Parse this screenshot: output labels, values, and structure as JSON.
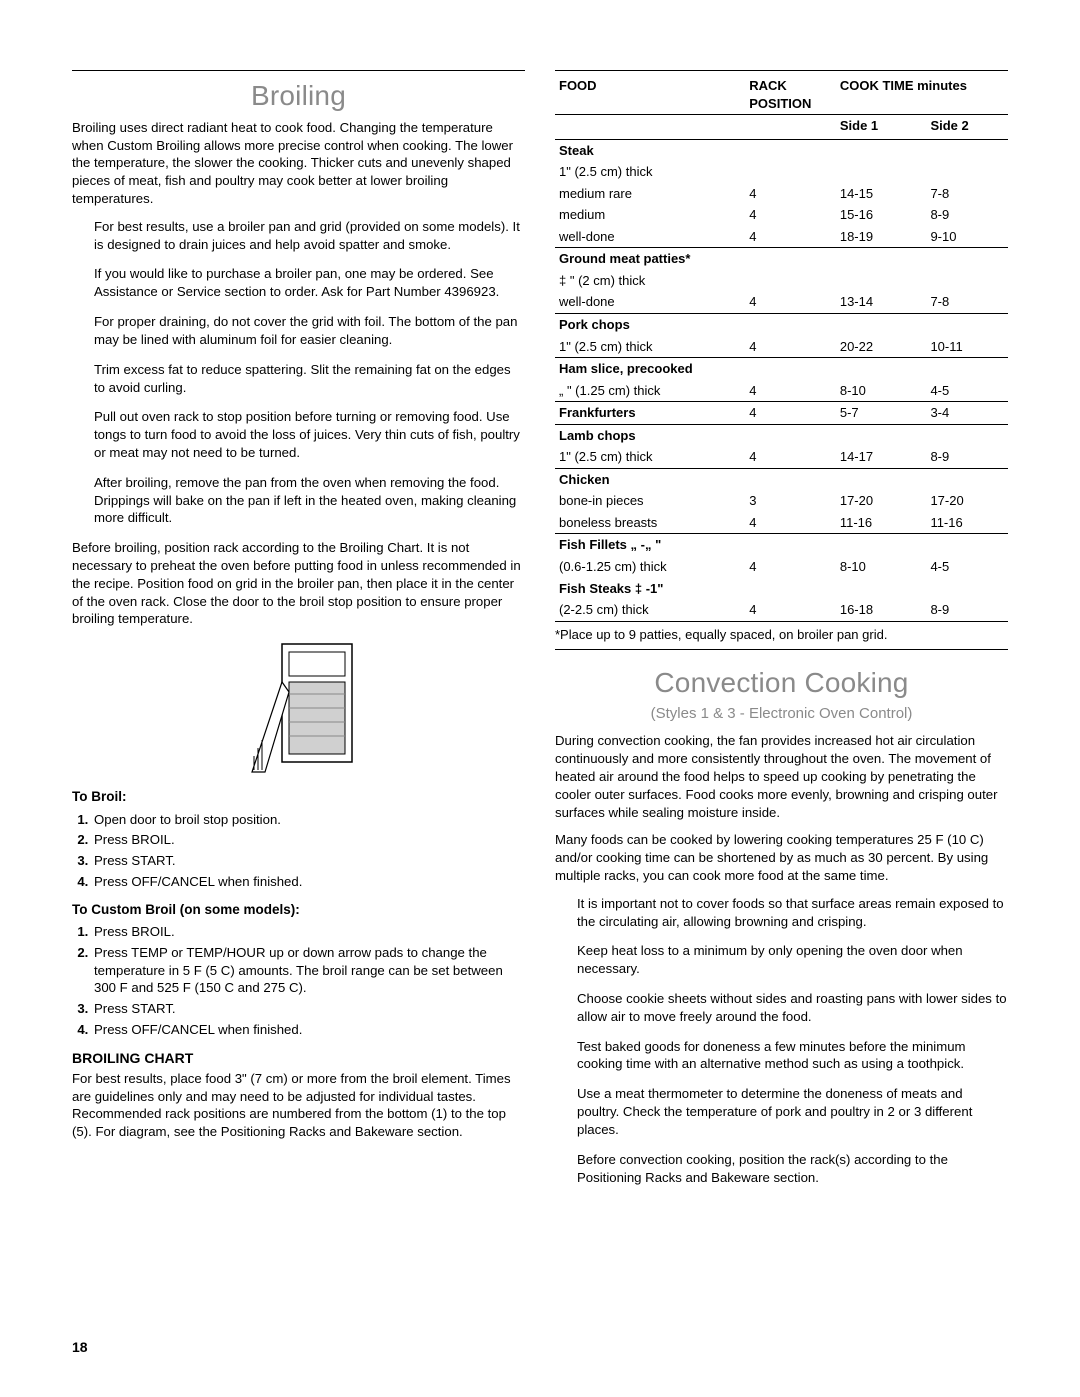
{
  "pageNumber": "18",
  "left": {
    "title": "Broiling",
    "intro": "Broiling uses direct radiant heat to cook food. Changing the temperature when Custom Broiling allows more precise control when cooking. The lower the temperature, the slower the cooking. Thicker cuts and unevenly shaped pieces of meat, fish and poultry may cook better at lower broiling temperatures.",
    "tips": [
      "For best results, use a broiler pan and grid (provided on some models). It is designed to drain juices and help avoid spatter and smoke.",
      "If you would like to purchase a broiler pan, one may be ordered. See Assistance or Service section to order. Ask for Part Number 4396923.",
      "For proper draining, do not cover the grid with foil. The bottom of the pan may be lined with aluminum foil for easier cleaning.",
      "Trim excess fat to reduce spattering. Slit the remaining fat on the edges to avoid curling.",
      "Pull out oven rack to stop position before turning or removing food. Use tongs to turn food to avoid the loss of juices. Very thin cuts of fish, poultry or meat may not need to be turned.",
      "After broiling, remove the pan from the oven when removing the food. Drippings will bake on the pan if left in the heated oven, making cleaning more difficult."
    ],
    "beforeBroiling": "Before broiling, position rack according to the Broiling Chart. It is not necessary to preheat the oven before putting food in unless recommended in the recipe. Position food on grid in the broiler pan, then place it in the center of the oven rack. Close the door to the broil stop position to ensure proper broiling temperature.",
    "toBroilHead": "To Broil:",
    "toBroilSteps": [
      "Open door to broil stop position.",
      "Press BROIL.",
      "Press START.",
      "Press OFF/CANCEL when finished."
    ],
    "customHead": "To Custom Broil (on some models):",
    "customSteps": [
      "Press BROIL.",
      "Press TEMP or TEMP/HOUR up or down arrow pads to change the temperature in 5 F (5 C) amounts. The broil range can be set between 300 F and 525 F (150 C and 275 C).",
      "Press START.",
      "Press OFF/CANCEL when finished."
    ],
    "chartHead": "BROILING CHART",
    "chartText": "For best results, place food 3\" (7 cm) or more from the broil element. Times are guidelines only and may need to be adjusted for individual tastes. Recommended rack positions are numbered from the bottom (1) to the top (5). For diagram, see the Positioning Racks and Bakeware section."
  },
  "table": {
    "headers": {
      "food": "FOOD",
      "rack": "RACK POSITION",
      "cook": "COOK TIME minutes",
      "side1": "Side 1",
      "side2": "Side 2"
    },
    "groups": [
      {
        "title": "Steak",
        "sub": "1\" (2.5 cm) thick",
        "rows": [
          {
            "label": "medium rare",
            "rack": "4",
            "s1": "14-15",
            "s2": "7-8"
          },
          {
            "label": "medium",
            "rack": "4",
            "s1": "15-16",
            "s2": "8-9"
          },
          {
            "label": "well-done",
            "rack": "4",
            "s1": "18-19",
            "s2": "9-10"
          }
        ]
      },
      {
        "title": "Ground meat patties*",
        "sub": "‡ \" (2 cm) thick",
        "rows": [
          {
            "label": "well-done",
            "rack": "4",
            "s1": "13-14",
            "s2": "7-8"
          }
        ]
      },
      {
        "title": "Pork chops",
        "sub": "",
        "rows": [
          {
            "label": "1\" (2.5 cm) thick",
            "rack": "4",
            "s1": "20-22",
            "s2": "10-11"
          }
        ]
      },
      {
        "title": "Ham slice, precooked",
        "sub": "",
        "rows": [
          {
            "label": "„ \" (1.25 cm) thick",
            "rack": "4",
            "s1": "8-10",
            "s2": "4-5"
          }
        ]
      },
      {
        "title": "Frankfurters",
        "sub": "",
        "rows": [
          {
            "label": "",
            "rack": "4",
            "s1": "5-7",
            "s2": "3-4"
          }
        ],
        "inline": true
      },
      {
        "title": "Lamb chops",
        "sub": "",
        "rows": [
          {
            "label": "1\" (2.5 cm) thick",
            "rack": "4",
            "s1": "14-17",
            "s2": "8-9"
          }
        ]
      },
      {
        "title": "Chicken",
        "sub": "",
        "rows": [
          {
            "label": "bone-in pieces",
            "rack": "3",
            "s1": "17-20",
            "s2": "17-20"
          },
          {
            "label": "boneless breasts",
            "rack": "4",
            "s1": "11-16",
            "s2": "11-16"
          }
        ]
      },
      {
        "title": "Fish Fillets „ -„ \"",
        "sub": "",
        "rows": [
          {
            "label": "(0.6-1.25 cm) thick",
            "rack": "4",
            "s1": "8-10",
            "s2": "4-5"
          }
        ],
        "extraTitle": "Fish Steaks ‡ -1\"",
        "extraRows": [
          {
            "label": "(2-2.5 cm) thick",
            "rack": "4",
            "s1": "16-18",
            "s2": "8-9"
          }
        ]
      }
    ],
    "note": "*Place up to 9 patties, equally spaced, on broiler pan grid."
  },
  "right": {
    "title": "Convection Cooking",
    "subtitle": "(Styles 1 & 3 - Electronic Oven Control)",
    "p1": "During convection cooking, the fan provides increased hot air circulation continuously and more consistently throughout the oven. The movement of heated air around the food helps to speed up cooking by penetrating the cooler outer surfaces. Food cooks more evenly, browning and crisping outer surfaces while sealing moisture inside.",
    "p2": "Many foods can be cooked by lowering cooking temperatures 25 F (10 C) and/or cooking time can be shortened by as much as 30 percent. By using multiple racks, you can cook more food at the same time.",
    "tips": [
      "It is important not to cover foods so that surface areas remain exposed to the circulating air, allowing browning and crisping.",
      "Keep heat loss to a minimum by only opening the oven door when necessary.",
      "Choose cookie sheets without sides and roasting pans with lower sides to allow air to move freely around the food.",
      "Test baked goods for doneness a few minutes before the minimum cooking time with an alternative method such as using a toothpick.",
      "Use a meat thermometer to determine the doneness of meats and poultry. Check the temperature of pork and poultry in 2 or 3 different places.",
      "Before convection cooking, position the rack(s) according to the Positioning Racks and Bakeware section."
    ]
  }
}
